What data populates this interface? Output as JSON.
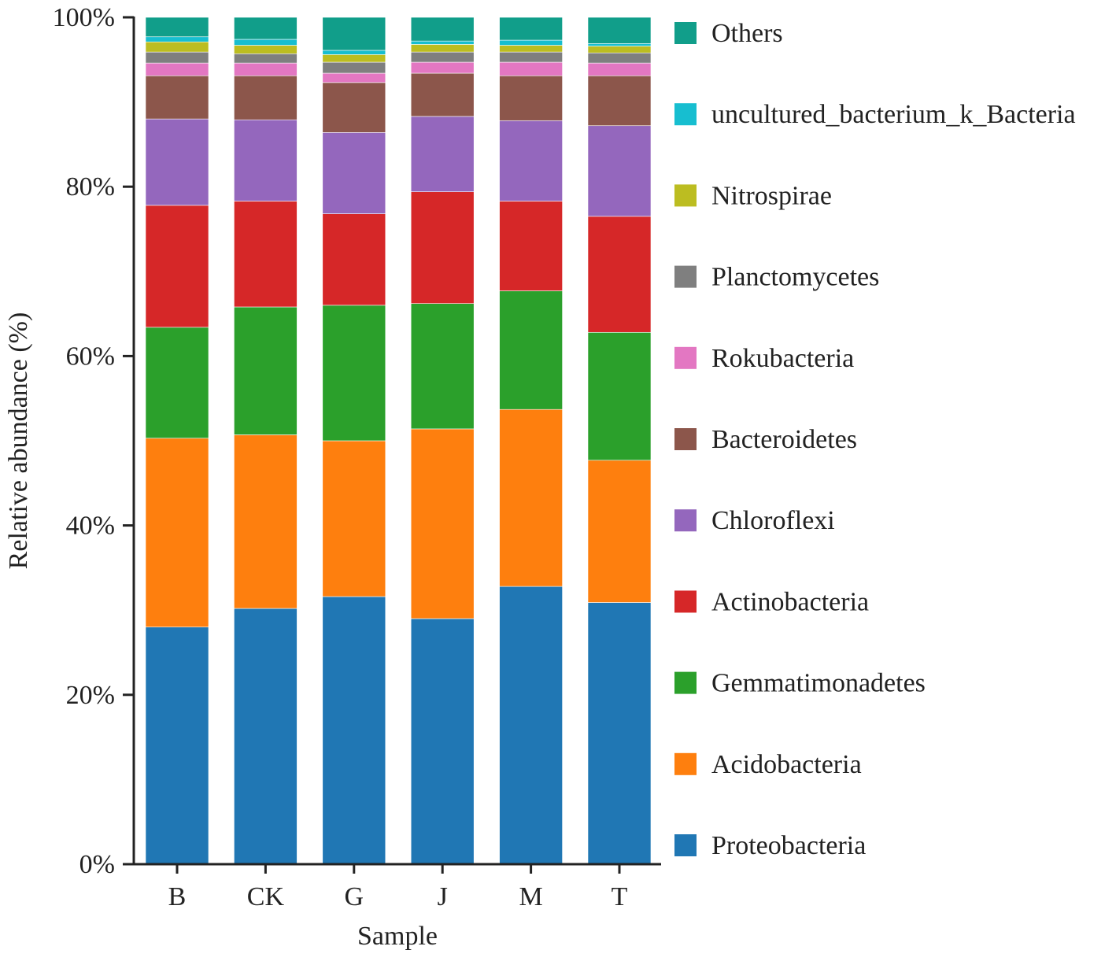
{
  "chart_data": {
    "type": "bar",
    "stacked": true,
    "title": "",
    "xlabel": "Sample",
    "ylabel": "Relative abundance (%)",
    "ylim": [
      0,
      100
    ],
    "y_ticks": [
      "0%",
      "20%",
      "40%",
      "60%",
      "80%",
      "100%"
    ],
    "legend_position": "right",
    "categories": [
      "B",
      "CK",
      "G",
      "J",
      "M",
      "T"
    ],
    "series": [
      {
        "name": "Proteobacteria",
        "color": "#2077b4",
        "values": [
          28.0,
          30.2,
          31.6,
          29.0,
          32.8,
          30.9
        ]
      },
      {
        "name": "Acidobacteria",
        "color": "#fe7f0e",
        "values": [
          22.3,
          20.5,
          18.4,
          22.4,
          20.9,
          16.8
        ]
      },
      {
        "name": "Gemmatimonadetes",
        "color": "#2ba02b",
        "values": [
          13.1,
          15.1,
          16.0,
          14.8,
          14.0,
          15.1
        ]
      },
      {
        "name": "Actinobacteria",
        "color": "#d62728",
        "values": [
          14.4,
          12.5,
          10.8,
          13.2,
          10.6,
          13.7
        ]
      },
      {
        "name": "Chloroflexi",
        "color": "#9467bd",
        "values": [
          10.2,
          9.6,
          9.6,
          8.9,
          9.5,
          10.7
        ]
      },
      {
        "name": "Bacteroidetes",
        "color": "#8c564b",
        "values": [
          5.1,
          5.2,
          5.9,
          5.1,
          5.3,
          5.9
        ]
      },
      {
        "name": "Rokubacteria",
        "color": "#e377c2",
        "values": [
          1.5,
          1.5,
          1.1,
          1.3,
          1.6,
          1.5
        ]
      },
      {
        "name": "Planctomycetes",
        "color": "#7f7f7f",
        "values": [
          1.3,
          1.1,
          1.3,
          1.2,
          1.2,
          1.2
        ]
      },
      {
        "name": "Nitrospirae",
        "color": "#bcbd21",
        "values": [
          1.2,
          1.0,
          0.9,
          0.9,
          0.8,
          0.8
        ]
      },
      {
        "name": "uncultured_bacterium_k_Bacteria",
        "color": "#17bed0",
        "values": [
          0.6,
          0.7,
          0.5,
          0.4,
          0.6,
          0.3
        ]
      },
      {
        "name": "Others",
        "color": "#119e8a",
        "values": [
          2.3,
          2.6,
          3.9,
          2.8,
          2.7,
          3.1
        ]
      }
    ]
  }
}
